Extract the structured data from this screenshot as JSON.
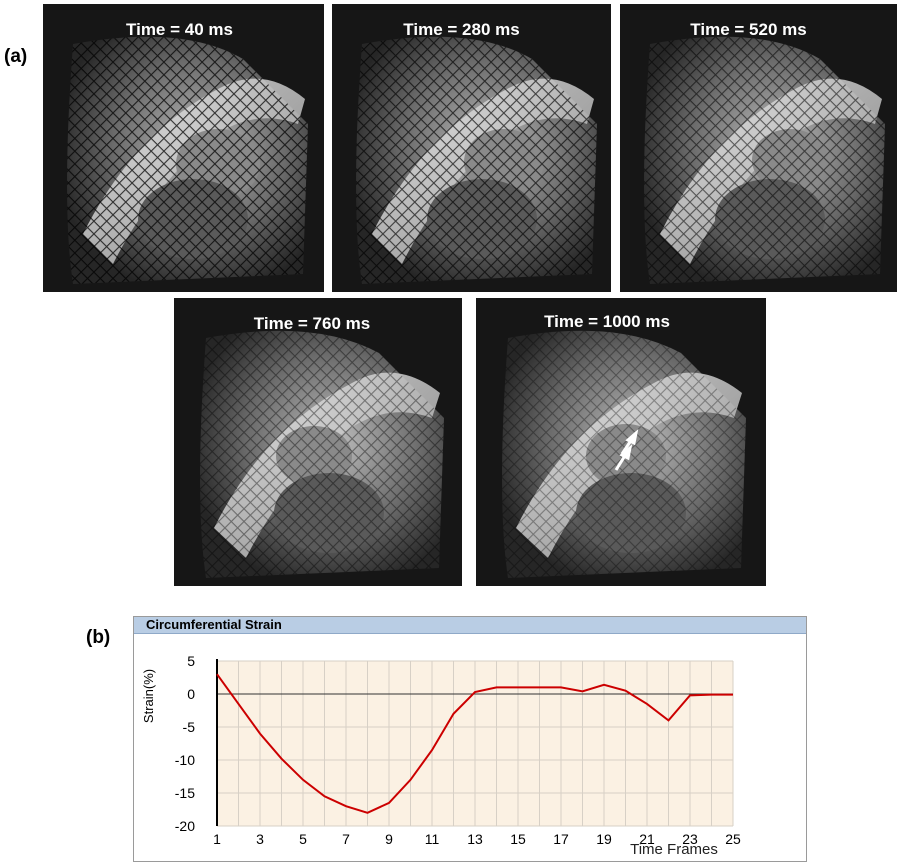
{
  "panel_a_label": "(a)",
  "panel_b_label": "(b)",
  "frames": [
    {
      "title": "Time = 40 ms"
    },
    {
      "title": "Time = 280 ms"
    },
    {
      "title": "Time = 520 ms"
    },
    {
      "title": "Time = 760 ms"
    },
    {
      "title": "Time = 1000 ms"
    }
  ],
  "chart_data": {
    "type": "line",
    "title": "Circumferential Strain",
    "xlabel": "Time Frames",
    "ylabel": "Strain(%)",
    "xlim": [
      1,
      25
    ],
    "ylim": [
      -20,
      5
    ],
    "x_ticks": [
      1,
      3,
      5,
      7,
      9,
      11,
      13,
      15,
      17,
      19,
      21,
      23,
      25
    ],
    "y_ticks": [
      5,
      0,
      -5,
      -10,
      -15,
      -20
    ],
    "grid": true,
    "line_color": "#cc0000",
    "background_color": "#fbf1e3",
    "header_color": "#b9cde4",
    "series": [
      {
        "name": "Circumferential Strain",
        "x": [
          1,
          2,
          3,
          4,
          5,
          6,
          7,
          8,
          9,
          10,
          11,
          12,
          13,
          14,
          15,
          16,
          17,
          18,
          19,
          20,
          21,
          22,
          23,
          24,
          25
        ],
        "values": [
          3,
          -1.5,
          -6,
          -9.8,
          -13,
          -15.5,
          -17,
          -18,
          -16.5,
          -13,
          -8.5,
          -3,
          0.3,
          1,
          1,
          1,
          1,
          0.4,
          1.4,
          0.5,
          -1.5,
          -4,
          -0.2,
          -0.1,
          -0.1
        ]
      }
    ]
  }
}
